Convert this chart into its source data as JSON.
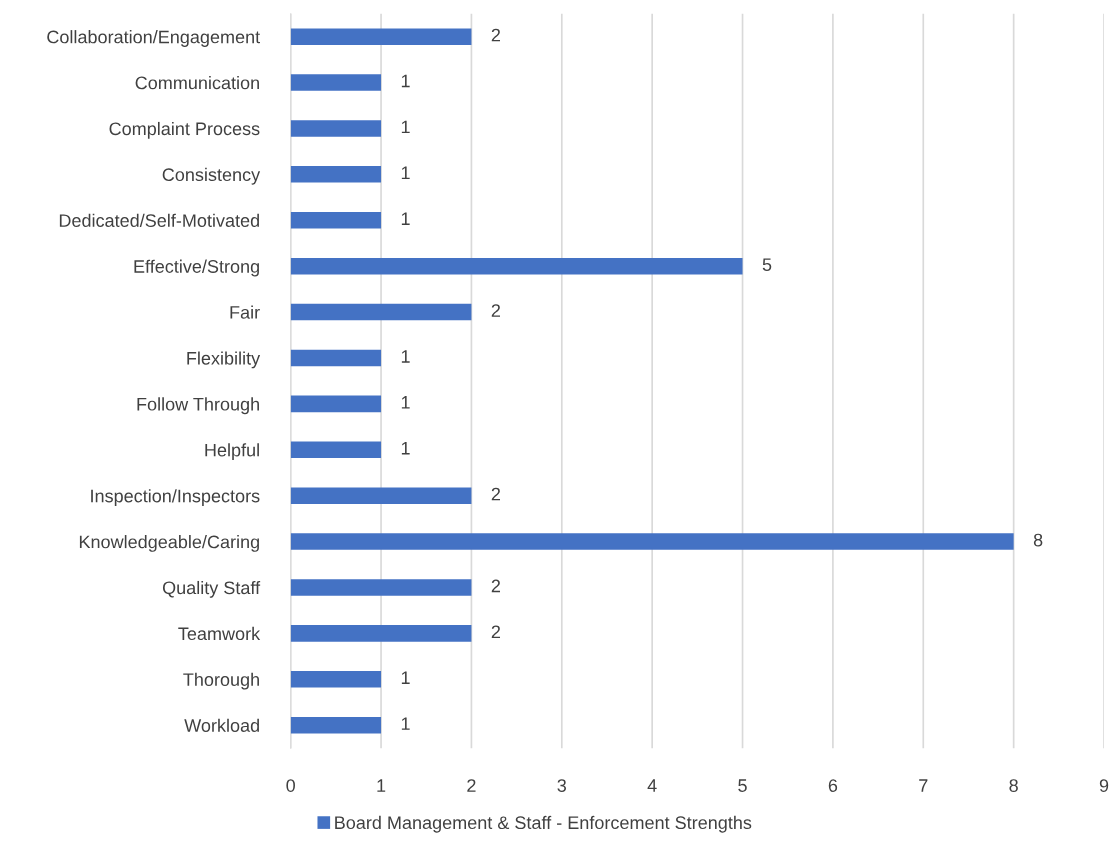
{
  "chart_data": {
    "type": "bar",
    "orientation": "horizontal",
    "categories": [
      "Collaboration/Engagement",
      "Communication",
      "Complaint Process",
      "Consistency",
      "Dedicated/Self-Motivated",
      "Effective/Strong",
      "Fair",
      "Flexibility",
      "Follow Through",
      "Helpful",
      "Inspection/Inspectors",
      "Knowledgeable/Caring",
      "Quality Staff",
      "Teamwork",
      "Thorough",
      "Workload"
    ],
    "series": [
      {
        "name": "Board Management & Staff - Enforcement Strengths",
        "color": "#4472c4",
        "values": [
          2,
          1,
          1,
          1,
          1,
          5,
          2,
          1,
          1,
          1,
          2,
          8,
          2,
          2,
          1,
          1
        ]
      }
    ],
    "xlim": [
      0,
      9
    ],
    "xticks": [
      0,
      1,
      2,
      3,
      4,
      5,
      6,
      7,
      8,
      9
    ],
    "grid": "x",
    "legend": "bottom",
    "data_labels": true
  }
}
